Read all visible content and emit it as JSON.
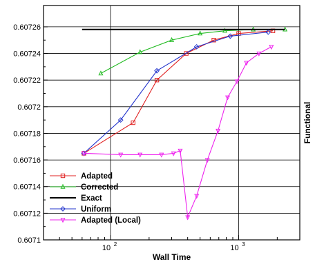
{
  "chart_data": {
    "type": "line",
    "xlabel": "Wall Time",
    "ylabel": "Functional",
    "xscale": "log",
    "xlim": [
      30,
      3000
    ],
    "ylim": [
      0.6071,
      0.607276
    ],
    "grid": true,
    "legend_position": "bottom-left",
    "x_ticks": [
      {
        "value": 100,
        "base": "10",
        "exp": "2"
      },
      {
        "value": 1000,
        "base": "10",
        "exp": "3"
      }
    ],
    "y_ticks": [
      {
        "value": 0.6071,
        "label": "0.6071"
      },
      {
        "value": 0.60712,
        "label": "0.60712"
      },
      {
        "value": 0.60714,
        "label": "0.60714"
      },
      {
        "value": 0.60716,
        "label": "0.60716"
      },
      {
        "value": 0.60718,
        "label": "0.60718"
      },
      {
        "value": 0.6072,
        "label": "0.6072"
      },
      {
        "value": 0.60722,
        "label": "0.60722"
      },
      {
        "value": 0.60724,
        "label": "0.60724"
      },
      {
        "value": 0.60726,
        "label": "0.60726"
      }
    ],
    "series": [
      {
        "name": "Adapted",
        "color": "#e02020",
        "marker": "square",
        "x": [
          62,
          150,
          230,
          390,
          640,
          1000,
          1850
        ],
        "y": [
          0.607165,
          0.607188,
          0.60722,
          0.60724,
          0.60725,
          0.607255,
          0.607257
        ]
      },
      {
        "name": "Corrected",
        "color": "#22bb22",
        "marker": "triangle-up",
        "x": [
          84,
          170,
          300,
          500,
          780,
          1300,
          2300
        ],
        "y": [
          0.607225,
          0.607241,
          0.60725,
          0.607255,
          0.607257,
          0.607258,
          0.607258
        ]
      },
      {
        "name": "Exact",
        "color": "#000000",
        "marker": "none",
        "x": [
          60,
          2300
        ],
        "y": [
          0.607258,
          0.607258
        ]
      },
      {
        "name": "Uniform",
        "color": "#2233cc",
        "marker": "diamond",
        "x": [
          62,
          120,
          230,
          470,
          860,
          1700
        ],
        "y": [
          0.607165,
          0.60719,
          0.607227,
          0.607245,
          0.607253,
          0.607256
        ]
      },
      {
        "name": "Adapted (Local)",
        "color": "#ee22ee",
        "marker": "triangle-down",
        "x": [
          62,
          120,
          170,
          250,
          310,
          350,
          400,
          470,
          570,
          690,
          820,
          970,
          1150,
          1440,
          1800
        ],
        "y": [
          0.607165,
          0.607164,
          0.607164,
          0.607164,
          0.607165,
          0.607167,
          0.607117,
          0.607133,
          0.60716,
          0.607182,
          0.607207,
          0.607219,
          0.607233,
          0.60724,
          0.607245
        ]
      }
    ]
  }
}
